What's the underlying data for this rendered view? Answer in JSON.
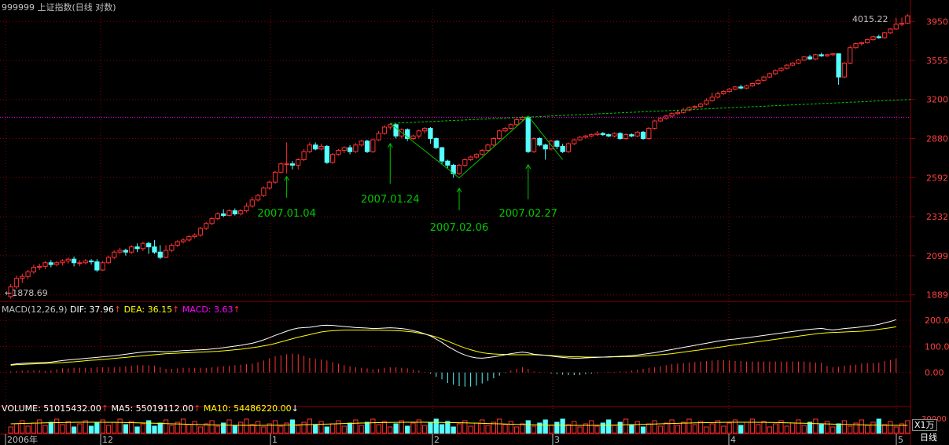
{
  "header": {
    "title": "999999 上证指数(日线 对数)",
    "right_label": "4015.22",
    "low_label": "1878.69"
  },
  "price_axis": [
    "3950",
    "3555",
    "3200",
    "2880",
    "2592",
    "2332",
    "2099",
    "1889"
  ],
  "annotations": [
    {
      "label": "2007.01.04",
      "date": "2007-01-04"
    },
    {
      "label": "2007.01.24",
      "date": "2007-01-24"
    },
    {
      "label": "2007.02.06",
      "date": "2007-02-06"
    },
    {
      "label": "2007.02.27",
      "date": "2007-02-27"
    }
  ],
  "macd": {
    "label": "MACD(12,26,9)",
    "dif_label": "DIF: 37.96",
    "dea_label": "DEA: 36.15",
    "macd_label": "MACD: 3.63",
    "axis": [
      "200.00",
      "100.00",
      "0.00"
    ]
  },
  "volume": {
    "vol_label": "VOLUME: 51015432.00",
    "ma5_label": "MA5: 55019112.00",
    "ma10_label": "MA10: 54486220.00",
    "axis_value": "30000",
    "unit": "X1万"
  },
  "time_axis": {
    "labels": [
      "2006年",
      "12",
      "1",
      "2",
      "3",
      "4",
      "5"
    ],
    "period_button": "日线"
  },
  "colors": {
    "up": "#ff3232",
    "down": "#54ffff",
    "grid": "#8b0000",
    "annotation": "#00c800",
    "dif": "#ffffff",
    "dea": "#ffff00",
    "macd_text": "#ff00ff"
  },
  "chart_data": {
    "type": "candlestick",
    "scale": "log",
    "ylim": [
      1860,
      4080
    ],
    "macd_ylim": [
      -100,
      230
    ],
    "grid": true,
    "candles": [
      [
        1880,
        1930,
        1870,
        1945
      ],
      [
        1930,
        1975,
        1920,
        1990
      ],
      [
        1975,
        1985,
        1950,
        2000
      ],
      [
        1985,
        2010,
        1970,
        2020
      ],
      [
        2010,
        2035,
        2000,
        2050
      ],
      [
        2035,
        2040,
        2020,
        2055
      ],
      [
        2040,
        2060,
        2025,
        2070
      ],
      [
        2060,
        2050,
        2035,
        2075
      ],
      [
        2050,
        2060,
        2040,
        2070
      ],
      [
        2060,
        2070,
        2045,
        2080
      ],
      [
        2070,
        2080,
        2055,
        2090
      ],
      [
        2080,
        2060,
        2040,
        2095
      ],
      [
        2060,
        2060,
        2040,
        2075
      ],
      [
        2060,
        2070,
        2050,
        2080
      ],
      [
        2070,
        2065,
        2050,
        2080
      ],
      [
        2065,
        2020,
        2010,
        2080
      ],
      [
        2020,
        2060,
        2015,
        2070
      ],
      [
        2060,
        2090,
        2055,
        2100
      ],
      [
        2090,
        2120,
        2080,
        2130
      ],
      [
        2120,
        2130,
        2110,
        2145
      ],
      [
        2130,
        2120,
        2100,
        2140
      ],
      [
        2120,
        2150,
        2110,
        2160
      ],
      [
        2150,
        2140,
        2120,
        2170
      ],
      [
        2140,
        2170,
        2125,
        2180
      ],
      [
        2170,
        2150,
        2110,
        2180
      ],
      [
        2150,
        2120,
        2110,
        2190
      ],
      [
        2120,
        2090,
        2080,
        2160
      ],
      [
        2090,
        2130,
        2085,
        2160
      ],
      [
        2130,
        2160,
        2120,
        2170
      ],
      [
        2160,
        2180,
        2150,
        2190
      ],
      [
        2180,
        2190,
        2170,
        2200
      ],
      [
        2190,
        2210,
        2180,
        2220
      ],
      [
        2210,
        2220,
        2200,
        2230
      ],
      [
        2220,
        2260,
        2210,
        2270
      ],
      [
        2260,
        2290,
        2250,
        2300
      ],
      [
        2290,
        2320,
        2280,
        2330
      ],
      [
        2320,
        2350,
        2310,
        2360
      ],
      [
        2350,
        2340,
        2330,
        2380
      ],
      [
        2340,
        2370,
        2335,
        2380
      ],
      [
        2370,
        2350,
        2340,
        2385
      ],
      [
        2350,
        2370,
        2340,
        2380
      ],
      [
        2370,
        2400,
        2360,
        2420
      ],
      [
        2400,
        2440,
        2390,
        2460
      ],
      [
        2440,
        2470,
        2430,
        2480
      ],
      [
        2470,
        2520,
        2460,
        2530
      ],
      [
        2520,
        2560,
        2510,
        2570
      ],
      [
        2560,
        2630,
        2550,
        2640
      ],
      [
        2630,
        2690,
        2620,
        2700
      ],
      [
        2690,
        2690,
        2620,
        2850
      ],
      [
        2690,
        2680,
        2650,
        2710
      ],
      [
        2680,
        2720,
        2650,
        2730
      ],
      [
        2720,
        2780,
        2710,
        2800
      ],
      [
        2780,
        2830,
        2770,
        2850
      ],
      [
        2830,
        2800,
        2790,
        2850
      ],
      [
        2800,
        2820,
        2790,
        2840
      ],
      [
        2820,
        2700,
        2690,
        2830
      ],
      [
        2700,
        2760,
        2690,
        2770
      ],
      [
        2760,
        2790,
        2750,
        2800
      ],
      [
        2790,
        2810,
        2770,
        2820
      ],
      [
        2810,
        2780,
        2760,
        2830
      ],
      [
        2780,
        2830,
        2770,
        2845
      ],
      [
        2830,
        2860,
        2820,
        2870
      ],
      [
        2860,
        2780,
        2770,
        2870
      ],
      [
        2780,
        2870,
        2770,
        2880
      ],
      [
        2870,
        2920,
        2860,
        2940
      ],
      [
        2920,
        2970,
        2910,
        2985
      ],
      [
        2970,
        2990,
        2950,
        3000
      ],
      [
        2990,
        2900,
        2880,
        3000
      ],
      [
        2900,
        2950,
        2880,
        2960
      ],
      [
        2950,
        2880,
        2860,
        2960
      ],
      [
        2880,
        2900,
        2870,
        2910
      ],
      [
        2900,
        2940,
        2880,
        2950
      ],
      [
        2940,
        2960,
        2920,
        2970
      ],
      [
        2960,
        2880,
        2840,
        2970
      ],
      [
        2880,
        2810,
        2800,
        2890
      ],
      [
        2810,
        2710,
        2690,
        2815
      ],
      [
        2710,
        2680,
        2660,
        2720
      ],
      [
        2680,
        2620,
        2590,
        2690
      ],
      [
        2620,
        2680,
        2612,
        2690
      ],
      [
        2680,
        2720,
        2670,
        2730
      ],
      [
        2720,
        2740,
        2710,
        2750
      ],
      [
        2740,
        2760,
        2725,
        2770
      ],
      [
        2760,
        2790,
        2750,
        2800
      ],
      [
        2790,
        2830,
        2780,
        2840
      ],
      [
        2830,
        2880,
        2820,
        2890
      ],
      [
        2880,
        2940,
        2870,
        2950
      ],
      [
        2940,
        2960,
        2930,
        2970
      ],
      [
        2960,
        2990,
        2950,
        3000
      ],
      [
        2990,
        3030,
        2980,
        3040
      ],
      [
        3030,
        3050,
        3020,
        3060
      ],
      [
        3050,
        2780,
        2770,
        3050
      ],
      [
        2780,
        2880,
        2770,
        2890
      ],
      [
        2880,
        2830,
        2820,
        2890
      ],
      [
        2830,
        2800,
        2720,
        2840
      ],
      [
        2800,
        2860,
        2790,
        2870
      ],
      [
        2860,
        2820,
        2800,
        2870
      ],
      [
        2820,
        2780,
        2770,
        2840
      ],
      [
        2780,
        2840,
        2770,
        2850
      ],
      [
        2840,
        2870,
        2830,
        2880
      ],
      [
        2870,
        2890,
        2860,
        2900
      ],
      [
        2890,
        2900,
        2880,
        2910
      ],
      [
        2900,
        2910,
        2890,
        2920
      ],
      [
        2910,
        2920,
        2900,
        2940
      ],
      [
        2920,
        2910,
        2900,
        2930
      ],
      [
        2910,
        2900,
        2890,
        2920
      ],
      [
        2900,
        2920,
        2890,
        2930
      ],
      [
        2920,
        2880,
        2870,
        2930
      ],
      [
        2880,
        2910,
        2870,
        2920
      ],
      [
        2910,
        2900,
        2890,
        2920
      ],
      [
        2900,
        2930,
        2890,
        2940
      ],
      [
        2930,
        2880,
        2870,
        2940
      ],
      [
        2880,
        2960,
        2870,
        2970
      ],
      [
        2960,
        3020,
        2950,
        3030
      ],
      [
        3020,
        3040,
        3010,
        3050
      ],
      [
        3040,
        3060,
        3030,
        3070
      ],
      [
        3060,
        3080,
        3050,
        3090
      ],
      [
        3080,
        3090,
        3070,
        3110
      ],
      [
        3090,
        3110,
        3080,
        3130
      ],
      [
        3110,
        3130,
        3100,
        3140
      ],
      [
        3130,
        3140,
        3120,
        3150
      ],
      [
        3140,
        3160,
        3130,
        3170
      ],
      [
        3160,
        3190,
        3150,
        3210
      ],
      [
        3190,
        3220,
        3180,
        3260
      ],
      [
        3220,
        3250,
        3210,
        3270
      ],
      [
        3250,
        3270,
        3240,
        3280
      ],
      [
        3270,
        3290,
        3260,
        3300
      ],
      [
        3290,
        3310,
        3280,
        3320
      ],
      [
        3310,
        3300,
        3290,
        3330
      ],
      [
        3300,
        3320,
        3290,
        3330
      ],
      [
        3320,
        3340,
        3310,
        3350
      ],
      [
        3340,
        3370,
        3330,
        3380
      ],
      [
        3370,
        3400,
        3360,
        3410
      ],
      [
        3400,
        3430,
        3390,
        3440
      ],
      [
        3430,
        3460,
        3420,
        3470
      ],
      [
        3460,
        3480,
        3450,
        3490
      ],
      [
        3480,
        3510,
        3470,
        3520
      ],
      [
        3510,
        3530,
        3500,
        3540
      ],
      [
        3530,
        3560,
        3520,
        3570
      ],
      [
        3560,
        3590,
        3550,
        3600
      ],
      [
        3590,
        3570,
        3560,
        3610
      ],
      [
        3570,
        3610,
        3560,
        3620
      ],
      [
        3610,
        3600,
        3590,
        3630
      ],
      [
        3600,
        3610,
        3590,
        3620
      ],
      [
        3610,
        3620,
        3600,
        3630
      ],
      [
        3620,
        3400,
        3330,
        3620
      ],
      [
        3400,
        3530,
        3390,
        3540
      ],
      [
        3530,
        3680,
        3520,
        3700
      ],
      [
        3680,
        3720,
        3670,
        3730
      ],
      [
        3720,
        3730,
        3700,
        3740
      ],
      [
        3730,
        3760,
        3720,
        3770
      ],
      [
        3760,
        3790,
        3750,
        3800
      ],
      [
        3790,
        3780,
        3770,
        3810
      ],
      [
        3780,
        3830,
        3770,
        3840
      ],
      [
        3830,
        3870,
        3820,
        3880
      ],
      [
        3870,
        3920,
        3860,
        3990
      ],
      [
        3920,
        3930,
        3900,
        3990
      ],
      [
        3930,
        4010,
        3920,
        4030
      ]
    ],
    "macd_series": {
      "dif": [
        30,
        33,
        35,
        36,
        37,
        38,
        38,
        40,
        43,
        46,
        48,
        50,
        52,
        54,
        56,
        58,
        60,
        62,
        64,
        67,
        70,
        73,
        76,
        78,
        80,
        81,
        80,
        79,
        80,
        82,
        84,
        85,
        86,
        87,
        88,
        90,
        92,
        95,
        98,
        101,
        104,
        108,
        112,
        118,
        125,
        133,
        142,
        150,
        158,
        165,
        170,
        172,
        173,
        176,
        180,
        181,
        180,
        178,
        176,
        174,
        172,
        171,
        170,
        168,
        169,
        170,
        171,
        170,
        168,
        165,
        160,
        155,
        148,
        140,
        128,
        115,
        100,
        88,
        76,
        67,
        60,
        56,
        55,
        57,
        60,
        64,
        68,
        72,
        75,
        78,
        75,
        70,
        68,
        66,
        63,
        60,
        58,
        56,
        55,
        55,
        56,
        57,
        58,
        59,
        60,
        61,
        62,
        63,
        65,
        67,
        70,
        73,
        76,
        80,
        84,
        88,
        92,
        96,
        100,
        104,
        108,
        112,
        116,
        120,
        123,
        126,
        128,
        131,
        133,
        136,
        139,
        142,
        145,
        148,
        151,
        154,
        157,
        160,
        163,
        165,
        167,
        169,
        165,
        163,
        165,
        168,
        170,
        172,
        175,
        178,
        180,
        184,
        190,
        195,
        202
      ],
      "dea": [
        28,
        30,
        31,
        32,
        33,
        34,
        35,
        36,
        37,
        38,
        40,
        41,
        43,
        45,
        47,
        48,
        50,
        52,
        54,
        56,
        58,
        60,
        62,
        64,
        66,
        68,
        70,
        72,
        73,
        74,
        75,
        76,
        77,
        78,
        79,
        80,
        81,
        83,
        85,
        87,
        89,
        92,
        95,
        98,
        102,
        106,
        111,
        117,
        123,
        129,
        135,
        140,
        145,
        150,
        155,
        158,
        160,
        161,
        162,
        162,
        162,
        162,
        162,
        162,
        162,
        161,
        161,
        160,
        159,
        157,
        155,
        151,
        147,
        142,
        136,
        128,
        120,
        111,
        102,
        94,
        87,
        81,
        76,
        73,
        71,
        70,
        69,
        68,
        68,
        68,
        68,
        68,
        67,
        66,
        65,
        63,
        62,
        61,
        60,
        60,
        59,
        59,
        59,
        59,
        59,
        60,
        60,
        61,
        61,
        62,
        63,
        64,
        66,
        68,
        70,
        72,
        75,
        78,
        81,
        84,
        87,
        90,
        93,
        96,
        99,
        103,
        106,
        109,
        112,
        115,
        118,
        121,
        124,
        127,
        130,
        133,
        136,
        139,
        142,
        145,
        148,
        150,
        152,
        153,
        154,
        155,
        156,
        157,
        158,
        160,
        162,
        165,
        168,
        171,
        175
      ]
    }
  }
}
